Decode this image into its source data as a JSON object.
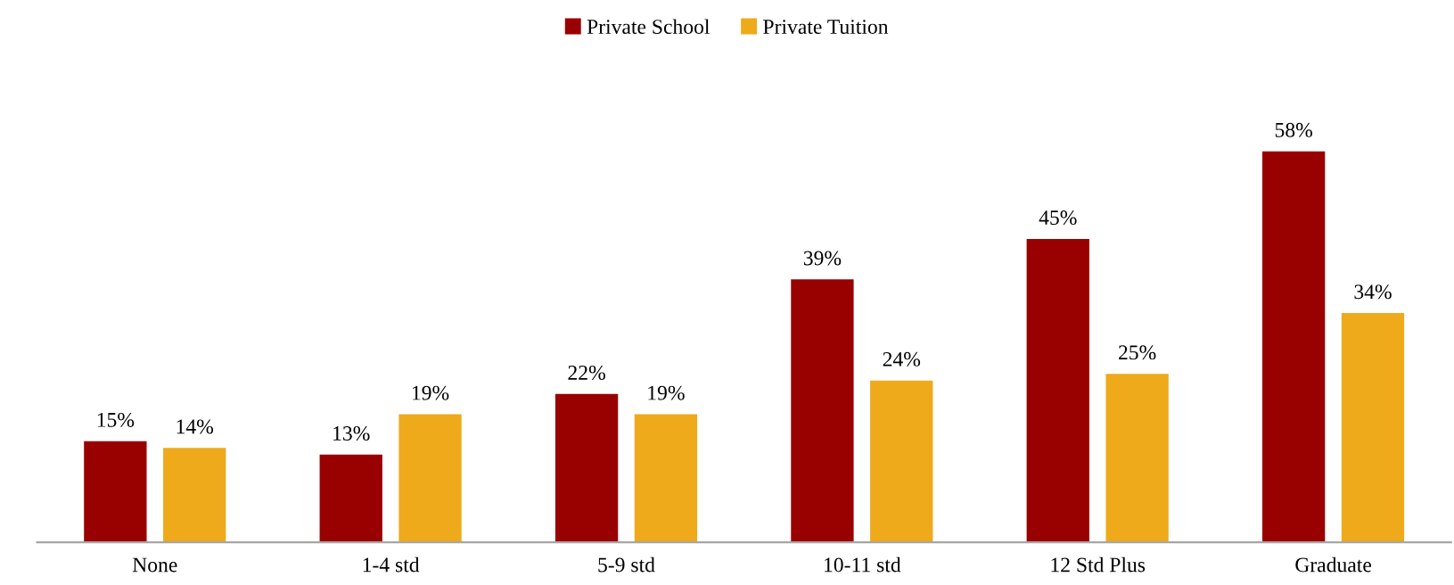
{
  "chart_data": {
    "type": "bar",
    "categories": [
      "None",
      "1-4 std",
      "5-9 std",
      "10-11 std",
      "12 Std Plus",
      "Graduate"
    ],
    "series": [
      {
        "name": "Private School",
        "color": "#990000",
        "values": [
          15,
          13,
          22,
          39,
          45,
          58
        ],
        "value_labels": [
          "15%",
          "13%",
          "22%",
          "39%",
          "45%",
          "58%"
        ]
      },
      {
        "name": "Private Tuition",
        "color": "#eeaa1a",
        "values": [
          14,
          19,
          19,
          24,
          25,
          34
        ],
        "value_labels": [
          "14%",
          "19%",
          "19%",
          "24%",
          "25%",
          "34%"
        ]
      }
    ],
    "legend": "top",
    "grid": false
  }
}
